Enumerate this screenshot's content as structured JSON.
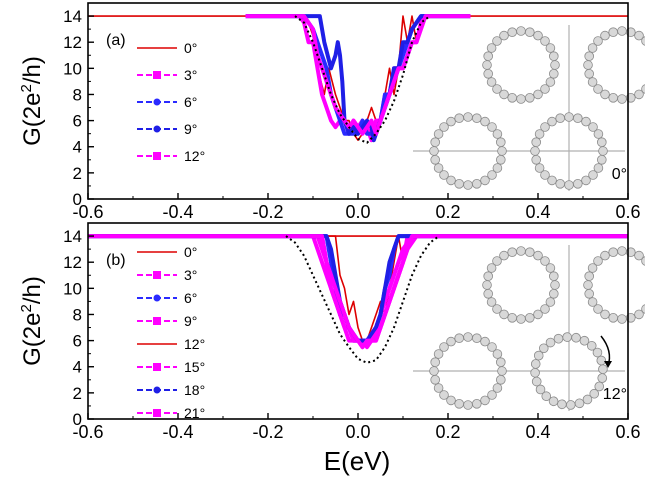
{
  "figure": {
    "xlabel_main": "E(eV)",
    "x_ticks": [
      "-0.6",
      "-0.4",
      "-0.2",
      "0.0",
      "0.2",
      "0.4",
      "0.6"
    ],
    "y_ticks": [
      "0",
      "2",
      "4",
      "6",
      "8",
      "10",
      "12",
      "14"
    ]
  },
  "chart_data": [
    {
      "type": "line",
      "panel_label": "(a)",
      "ylabel_main": "G(2e",
      "ylabel_sup": "2",
      "ylabel_end": "/h)",
      "xlim": [
        -0.6,
        0.6
      ],
      "ylim": [
        0,
        15
      ],
      "rotation_label": "0°",
      "series": [
        {
          "name": "0°",
          "color": "#dd0000",
          "marker": "none",
          "dash": false,
          "x": [
            -0.6,
            -0.115,
            -0.1,
            -0.09,
            -0.075,
            -0.065,
            -0.05,
            -0.04,
            -0.03,
            -0.02,
            -0.01,
            0.0,
            0.01,
            0.02,
            0.03,
            0.04,
            0.05,
            0.06,
            0.07,
            0.08,
            0.09,
            0.1,
            0.11,
            0.12,
            0.13,
            0.14,
            0.16,
            0.6
          ],
          "y": [
            14,
            14,
            12.5,
            10,
            8,
            10,
            8,
            7,
            6,
            6,
            5,
            4.5,
            5,
            6,
            7,
            6,
            6,
            8,
            10,
            8,
            10,
            14,
            12,
            14,
            12,
            14,
            14,
            14
          ]
        },
        {
          "name": "3°",
          "color": "#ff00ff",
          "marker": "square",
          "dash": true,
          "x": [
            -0.24,
            -0.13,
            -0.12,
            -0.11,
            -0.1,
            -0.09,
            -0.08,
            -0.07,
            -0.06,
            -0.05,
            -0.04,
            -0.03,
            -0.02,
            -0.01,
            0.0,
            0.01,
            0.02,
            0.03,
            0.04,
            0.05,
            0.06,
            0.07,
            0.08,
            0.09,
            0.1,
            0.11,
            0.12,
            0.13,
            0.14,
            0.15,
            0.25
          ],
          "y": [
            14,
            14,
            13.5,
            12,
            12,
            10,
            8,
            7,
            6,
            5.5,
            6,
            6,
            5,
            6,
            5.5,
            6,
            5.5,
            4.5,
            6,
            6,
            8,
            8,
            10,
            10,
            10,
            11,
            12,
            12,
            13.5,
            14,
            14
          ]
        },
        {
          "name": "6°",
          "color": "#2a2aff",
          "marker": "circle",
          "dash": true,
          "x": [
            -0.25,
            -0.12,
            -0.1,
            -0.09,
            -0.08,
            -0.07,
            -0.06,
            -0.05,
            -0.04,
            -0.03,
            -0.02,
            -0.01,
            0.0,
            0.01,
            0.02,
            0.03,
            0.04,
            0.05,
            0.06,
            0.07,
            0.08,
            0.09,
            0.1,
            0.11,
            0.12,
            0.14,
            0.25
          ],
          "y": [
            14,
            14,
            13,
            12,
            11,
            10,
            8,
            7,
            6,
            5,
            5,
            5,
            5,
            6,
            5,
            5,
            5,
            6,
            8,
            8,
            9,
            10,
            11,
            12,
            13,
            14,
            14
          ]
        },
        {
          "name": "9°",
          "color": "#1f1fe6",
          "marker": "circle",
          "dash": true,
          "x": [
            -0.25,
            -0.085,
            -0.075,
            -0.06,
            -0.05,
            -0.045,
            -0.04,
            -0.035,
            -0.03,
            -0.02,
            -0.01,
            0.0,
            0.01,
            0.02,
            0.03,
            0.035,
            0.04,
            0.05,
            0.06,
            0.07,
            0.08,
            0.09,
            0.1,
            0.11,
            0.12,
            0.14,
            0.25
          ],
          "y": [
            14,
            14,
            12,
            10,
            11,
            12,
            11,
            9,
            6,
            5,
            5.5,
            5,
            5.5,
            6,
            5.5,
            4.5,
            5,
            6,
            7,
            8,
            10,
            10,
            12,
            12,
            13,
            14,
            14
          ]
        },
        {
          "name": "12°",
          "color": "#ff00ff",
          "marker": "square",
          "dash": true,
          "x": [
            -0.25,
            -0.12,
            -0.1,
            -0.09,
            -0.08,
            -0.07,
            -0.06,
            -0.05,
            -0.04,
            -0.03,
            -0.02,
            -0.01,
            0.0,
            0.01,
            0.02,
            0.03,
            0.04,
            0.05,
            0.06,
            0.07,
            0.08,
            0.09,
            0.1,
            0.11,
            0.12,
            0.13,
            0.14,
            0.15,
            0.25
          ],
          "y": [
            14,
            14,
            13,
            11,
            10,
            9,
            8,
            7,
            6.5,
            6,
            5.5,
            6,
            5.5,
            5,
            5.5,
            6,
            5,
            6,
            7,
            8,
            9,
            10,
            10,
            11,
            12,
            12,
            13,
            14,
            14
          ]
        },
        {
          "name": "",
          "color": "#000000",
          "marker": "none",
          "dotted": true,
          "x": [
            -0.14,
            -0.12,
            -0.1,
            -0.08,
            -0.06,
            -0.04,
            -0.02,
            0.0,
            0.02,
            0.04,
            0.06,
            0.08,
            0.1,
            0.12,
            0.14,
            0.16
          ],
          "y": [
            14,
            13.5,
            12,
            10,
            8,
            6.5,
            5.5,
            4.6,
            4.3,
            5.0,
            6.0,
            7.5,
            9.5,
            12,
            13.5,
            14
          ]
        }
      ]
    },
    {
      "type": "line",
      "panel_label": "(b)",
      "ylabel_main": "G(2e",
      "ylabel_sup": "2",
      "ylabel_end": "/h)",
      "xlim": [
        -0.6,
        0.6
      ],
      "ylim": [
        0,
        15
      ],
      "rotation_label": "12°",
      "series": [
        {
          "name": "0°",
          "color": "#dd0000",
          "marker": "none",
          "dash": false,
          "x": [
            -0.6,
            -0.05,
            -0.04,
            -0.03,
            -0.02,
            -0.01,
            0.0,
            0.01,
            0.02,
            0.03,
            0.04,
            0.05,
            0.06,
            0.07,
            0.08,
            0.09,
            0.1,
            0.12,
            0.6
          ],
          "y": [
            14,
            14,
            11,
            10,
            8,
            9,
            7,
            6,
            6,
            7,
            8,
            9,
            8,
            10,
            12,
            14,
            12,
            14,
            14
          ]
        },
        {
          "name": "3°",
          "color": "#ff00ff",
          "marker": "square",
          "dash": true,
          "x": [
            -0.6,
            -0.1,
            -0.09,
            -0.08,
            -0.07,
            -0.06,
            -0.05,
            -0.04,
            -0.03,
            -0.02,
            -0.01,
            0.0,
            0.01,
            0.02,
            0.03,
            0.04,
            0.05,
            0.06,
            0.07,
            0.08,
            0.09,
            0.1,
            0.11,
            0.6
          ],
          "y": [
            14,
            14,
            13,
            12,
            11,
            10,
            9,
            8,
            7,
            6,
            6,
            6,
            6,
            5.5,
            6,
            6,
            7,
            8,
            9,
            10,
            11,
            12,
            14,
            14
          ]
        },
        {
          "name": "6°",
          "color": "#2a2aff",
          "marker": "circle",
          "dash": true,
          "x": [
            -0.6,
            -0.07,
            -0.06,
            -0.05,
            -0.04,
            -0.03,
            -0.02,
            -0.01,
            0.0,
            0.01,
            0.02,
            0.03,
            0.04,
            0.05,
            0.06,
            0.07,
            0.08,
            0.09,
            0.1,
            0.6
          ],
          "y": [
            14,
            14,
            12,
            10,
            8,
            8,
            7,
            6,
            6,
            6,
            6,
            6.5,
            7,
            8,
            10,
            11,
            13,
            14,
            14,
            14
          ]
        },
        {
          "name": "9°",
          "color": "#ff00ff",
          "marker": "square",
          "dash": true,
          "x": [
            -0.6,
            -0.08,
            -0.07,
            -0.06,
            -0.05,
            -0.04,
            -0.03,
            -0.02,
            -0.01,
            0.0,
            0.01,
            0.02,
            0.03,
            0.04,
            0.05,
            0.06,
            0.07,
            0.08,
            0.09,
            0.1,
            0.11,
            0.12,
            0.13,
            0.6
          ],
          "y": [
            14,
            14,
            12,
            11,
            10,
            9,
            8,
            7,
            6,
            6,
            5.5,
            6,
            6,
            6,
            7,
            8,
            9,
            10,
            11,
            12,
            13,
            13.5,
            14,
            14
          ]
        },
        {
          "name": "12°",
          "color": "#dd0000",
          "marker": "none",
          "dash": false,
          "x": [
            -0.6,
            0.6
          ],
          "y": [
            14,
            14
          ]
        },
        {
          "name": "15°",
          "color": "#ff00ff",
          "marker": "square",
          "dash": true,
          "x": [
            -0.6,
            -0.09,
            -0.08,
            -0.07,
            -0.06,
            -0.05,
            -0.04,
            -0.03,
            -0.02,
            -0.01,
            0.0,
            0.01,
            0.02,
            0.03,
            0.04,
            0.05,
            0.06,
            0.07,
            0.08,
            0.09,
            0.1,
            0.11,
            0.12,
            0.6
          ],
          "y": [
            14,
            14,
            13,
            12,
            10,
            9,
            8,
            7,
            7,
            6,
            6,
            6,
            6,
            6.5,
            7,
            8,
            9,
            10,
            11,
            12,
            13,
            13.5,
            14,
            14
          ]
        },
        {
          "name": "18°",
          "color": "#1f1fe6",
          "marker": "circle",
          "dash": true,
          "x": [
            -0.6,
            -0.07,
            -0.06,
            -0.05,
            -0.04,
            -0.03,
            -0.02,
            -0.01,
            0.0,
            0.01,
            0.02,
            0.03,
            0.04,
            0.05,
            0.06,
            0.07,
            0.08,
            0.09,
            0.1,
            0.6
          ],
          "y": [
            14,
            14,
            13,
            11,
            9,
            8,
            7,
            6.5,
            6,
            6,
            6,
            6.5,
            7,
            8,
            10,
            12,
            13,
            14,
            14,
            14
          ]
        },
        {
          "name": "21°",
          "color": "#ff00ff",
          "marker": "square",
          "dash": true,
          "x": [
            -0.6,
            -0.08,
            -0.07,
            -0.06,
            -0.05,
            -0.04,
            -0.03,
            -0.02,
            -0.01,
            0.0,
            0.01,
            0.02,
            0.03,
            0.04,
            0.05,
            0.06,
            0.07,
            0.08,
            0.09,
            0.1,
            0.11,
            0.12,
            0.6
          ],
          "y": [
            14,
            14,
            12,
            11,
            10,
            9,
            8,
            7,
            6.5,
            6,
            5.5,
            6,
            6,
            6.5,
            7,
            8,
            9,
            10,
            11,
            12,
            13,
            14,
            14
          ]
        },
        {
          "name": "",
          "color": "#000000",
          "marker": "none",
          "dotted": true,
          "x": [
            -0.16,
            -0.14,
            -0.12,
            -0.1,
            -0.08,
            -0.06,
            -0.04,
            -0.02,
            0.0,
            0.02,
            0.04,
            0.06,
            0.08,
            0.1,
            0.12,
            0.14,
            0.16,
            0.18
          ],
          "y": [
            14,
            13.5,
            12.5,
            11,
            9.5,
            8,
            6.5,
            5.5,
            4.6,
            4.3,
            4.5,
            5.5,
            7,
            9,
            11,
            12.5,
            13.5,
            14
          ]
        }
      ]
    }
  ]
}
